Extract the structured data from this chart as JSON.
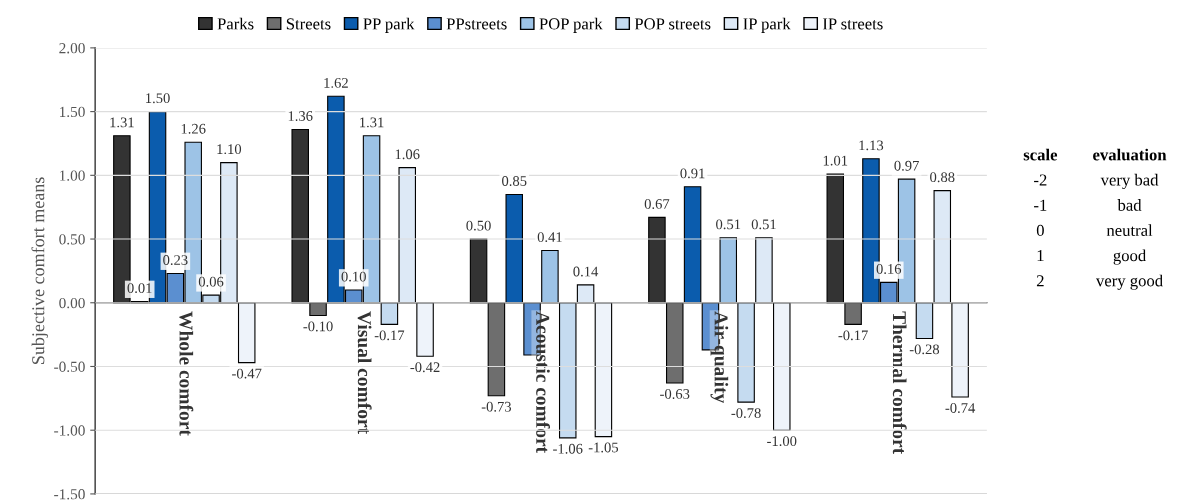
{
  "chart_data": {
    "type": "bar",
    "ylabel": "Subjective comfort means",
    "categories": [
      "Whole comfort",
      "Visual comfort",
      "Acoustic comfort",
      "Air-quality",
      "Thermal comfort"
    ],
    "series": [
      {
        "name": "Parks",
        "color": "#333333",
        "values": [
          1.31,
          1.36,
          0.5,
          0.67,
          1.01
        ],
        "value_labels": [
          "1.31",
          "1.36",
          "0.50",
          "0.67",
          "1.01"
        ]
      },
      {
        "name": "Streets",
        "color": "#6e6e6e",
        "values": [
          0.01,
          -0.1,
          -0.73,
          -0.63,
          -0.17
        ],
        "value_labels": [
          "0.01",
          "-0.10",
          "-0.73",
          "-0.63",
          "-0.17"
        ]
      },
      {
        "name": "PP park",
        "color": "#0b5cad",
        "values": [
          1.5,
          1.62,
          0.85,
          0.91,
          1.13
        ],
        "value_labels": [
          "1.50",
          "1.62",
          "0.85",
          "0.91",
          "1.13"
        ]
      },
      {
        "name": "PPstreets",
        "color": "#5b8fd0",
        "values": [
          0.23,
          0.1,
          -0.41,
          -0.37,
          0.16
        ],
        "value_labels": [
          "0.23",
          "0.10",
          null,
          null,
          "0.16"
        ]
      },
      {
        "name": "POP park",
        "color": "#9dc3e6",
        "values": [
          1.26,
          1.31,
          0.41,
          0.51,
          0.97
        ],
        "value_labels": [
          "1.26",
          "1.31",
          "0.41",
          "0.51",
          "0.97"
        ]
      },
      {
        "name": "POP streets",
        "color": "#c5dbf0",
        "values": [
          0.06,
          -0.17,
          -1.06,
          -0.78,
          -0.28
        ],
        "value_labels": [
          "0.06",
          "-0.17",
          "-1.06",
          "-0.78",
          "-0.28"
        ]
      },
      {
        "name": "IP park",
        "color": "#dde9f6",
        "values": [
          1.1,
          1.06,
          0.14,
          0.51,
          0.88
        ],
        "value_labels": [
          "1.10",
          "1.06",
          "0.14",
          "0.51",
          "0.88"
        ]
      },
      {
        "name": "IP streets",
        "color": "#eef3fa",
        "values": [
          -0.47,
          -0.42,
          -1.05,
          -1.0,
          -0.74
        ],
        "value_labels": [
          "-0.47",
          "-0.42",
          "-1.05",
          "-1.00",
          "-0.74"
        ]
      }
    ],
    "ylim": [
      -1.5,
      2.0
    ],
    "yticks": [
      {
        "value": -1.5,
        "label": "-1.50"
      },
      {
        "value": -1.0,
        "label": "-1.00"
      },
      {
        "value": -0.5,
        "label": "-0.50"
      },
      {
        "value": 0,
        "label": "0.00"
      },
      {
        "value": 0.5,
        "label": "0.50"
      },
      {
        "value": 1.0,
        "label": "1.00"
      },
      {
        "value": 1.5,
        "label": "1.50"
      },
      {
        "value": 2.0,
        "label": "2.00"
      }
    ],
    "grid": "y",
    "legend": "top",
    "annotations": [
      "scale",
      "evaluation",
      "-2",
      "very bad",
      "-1",
      "bad",
      "0",
      "neutral",
      "1",
      "good",
      "2",
      "very good"
    ]
  }
}
